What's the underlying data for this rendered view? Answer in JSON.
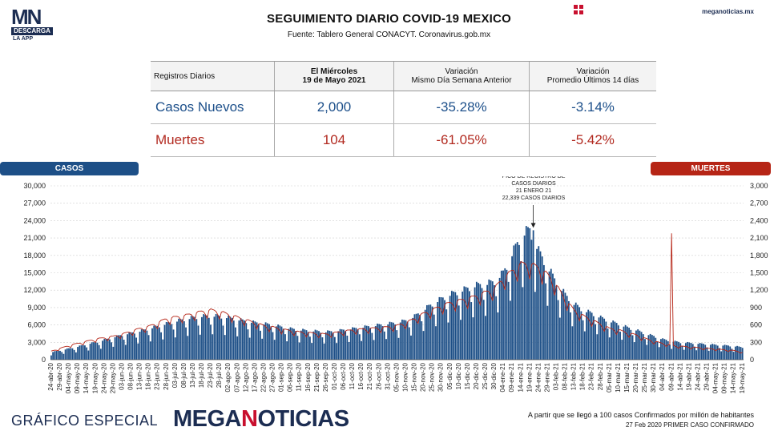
{
  "header": {
    "logo_letters": "MN",
    "logo_band": "DESCARGA",
    "logo_sub": "LA APP",
    "title": "SEGUIMIENTO DIARIO COVID-19 MEXICO",
    "source": "Fuente: Tablero General CONACYT. Coronavirus.gob.mx",
    "site": "meganoticias.mx",
    "grid_icon": "grid-icon"
  },
  "table": {
    "headers": {
      "col0": "Registros Diarios",
      "col1_l1": "El Miércoles",
      "col1_l2": "19 de Mayo 2021",
      "col2_l1": "Variación",
      "col2_l2": "Mismo Día Semana Anterior",
      "col3_l1": "Variación",
      "col3_l2": "Promedio Últimos 14 días"
    },
    "rows": [
      {
        "label": "Casos Nuevos",
        "value": "2,000",
        "var_week": "-35.28%",
        "var_14": "-3.14%"
      },
      {
        "label": "Muertes",
        "value": "104",
        "var_week": "-61.05%",
        "var_14": "-5.42%"
      }
    ]
  },
  "chart_labels": {
    "casos": "CASOS",
    "muertes": "MUERTES",
    "annotation": [
      "PICO DE REGISTRO DE",
      "CASOS DIARIOS",
      "21 ENERO 21",
      "22,339 CASOS DIARIOS"
    ]
  },
  "chart_data": {
    "type": "bar",
    "series_types": {
      "CASOS": "bar",
      "MUERTES": "line"
    },
    "colors": {
      "casos": "#1d4f87",
      "muertes": "#b62516"
    },
    "left_axis": {
      "min": 0,
      "max": 30000,
      "ticks": [
        "0",
        "3,000",
        "6,000",
        "9,000",
        "12,000",
        "15,000",
        "18,000",
        "21,000",
        "24,000",
        "27,000",
        "30,000"
      ]
    },
    "right_axis": {
      "min": 0,
      "max": 3000,
      "ticks": [
        "0",
        "300",
        "600",
        "900",
        "1,200",
        "1,500",
        "1,800",
        "2,100",
        "2,400",
        "2,700",
        "3,000"
      ]
    },
    "grid": true,
    "x_tick_labels": [
      "24-abr-20",
      "29-abr-20",
      "04-may-20",
      "09-may-20",
      "14-may-20",
      "19-may-20",
      "24-may-20",
      "29-may-20",
      "03-jun-20",
      "08-jun-20",
      "13-jun-20",
      "18-jun-20",
      "23-jun-20",
      "28-jun-20",
      "03-jul-20",
      "08-jul-20",
      "13-jul-20",
      "18-jul-20",
      "23-jul-20",
      "28-jul-20",
      "02-ago-20",
      "07-ago-20",
      "12-ago-20",
      "17-ago-20",
      "22-ago-20",
      "27-ago-20",
      "01-sep-20",
      "06-sep-20",
      "11-sep-20",
      "16-sep-20",
      "21-sep-20",
      "26-sep-20",
      "01-oct-20",
      "06-oct-20",
      "11-oct-20",
      "16-oct-20",
      "21-oct-20",
      "26-oct-20",
      "31-oct-20",
      "05-nov-20",
      "10-nov-20",
      "15-nov-20",
      "20-nov-20",
      "25-nov-20",
      "30-nov-20",
      "05-dic-20",
      "10-dic-20",
      "15-dic-20",
      "20-dic-20",
      "25-dic-20",
      "30-dic-20",
      "04-ene-21",
      "09-ene-21",
      "14-ene-21",
      "19-ene-21",
      "24-ene-21",
      "29-ene-21",
      "03-feb-21",
      "08-feb-21",
      "13-feb-21",
      "18-feb-21",
      "23-feb-21",
      "28-feb-21",
      "05-mar-21",
      "10-mar-21",
      "15-mar-21",
      "20-mar-21",
      "25-mar-21",
      "30-mar-21",
      "04-abr-21",
      "09-abr-21",
      "14-abr-21",
      "19-abr-21",
      "24-abr-21",
      "29-abr-21",
      "04-may-21",
      "09-may-21",
      "14-may-21",
      "19-may-21"
    ],
    "series": [
      {
        "name": "CASOS",
        "axis": "left",
        "values_per_5days": [
          1200,
          1500,
          1800,
          2100,
          2500,
          2800,
          3200,
          3600,
          4000,
          4300,
          4600,
          5000,
          5400,
          5800,
          6200,
          6500,
          6800,
          7000,
          7100,
          7000,
          6800,
          6500,
          6200,
          6000,
          5800,
          5600,
          5300,
          5000,
          4800,
          4700,
          4600,
          4500,
          4600,
          4800,
          5000,
          5200,
          5400,
          5600,
          5800,
          6000,
          6300,
          7000,
          8000,
          9000,
          9800,
          10500,
          11000,
          11500,
          12000,
          12200,
          12600,
          14000,
          17000,
          20000,
          21000,
          17500,
          15000,
          12500,
          10500,
          9000,
          8000,
          7500,
          6800,
          6200,
          5800,
          5200,
          4800,
          4200,
          3800,
          3300,
          3000,
          2800,
          2700,
          2600,
          2500,
          2400,
          2300,
          2200,
          2000
        ]
      },
      {
        "name": "MUERTES",
        "axis": "right",
        "values_per_5days": [
          120,
          160,
          200,
          230,
          260,
          290,
          310,
          330,
          360,
          400,
          440,
          470,
          520,
          580,
          600,
          620,
          650,
          680,
          700,
          680,
          640,
          600,
          560,
          520,
          480,
          460,
          430,
          410,
          390,
          380,
          370,
          360,
          380,
          400,
          420,
          430,
          440,
          450,
          460,
          480,
          520,
          580,
          650,
          700,
          760,
          800,
          830,
          860,
          900,
          950,
          1000,
          1150,
          1250,
          1350,
          1350,
          1300,
          1200,
          1050,
          850,
          700,
          620,
          560,
          500,
          440,
          420,
          380,
          350,
          300,
          260,
          230,
          200,
          190,
          180,
          170,
          160,
          150,
          140,
          130,
          104
        ]
      }
    ],
    "annotation_peak": {
      "date": "21-ene-21",
      "value": 22339
    }
  },
  "footer": {
    "left_text": "GRÁFICO ESPECIAL",
    "brand_a": "MEGA",
    "brand_n": "N",
    "brand_b": "OTICIAS",
    "note1": "A partir que se llegó a 100 casos Confirmados por millón de habitantes",
    "note2": "27 Feb 2020 PRIMER CASO CONFIRMADO"
  }
}
